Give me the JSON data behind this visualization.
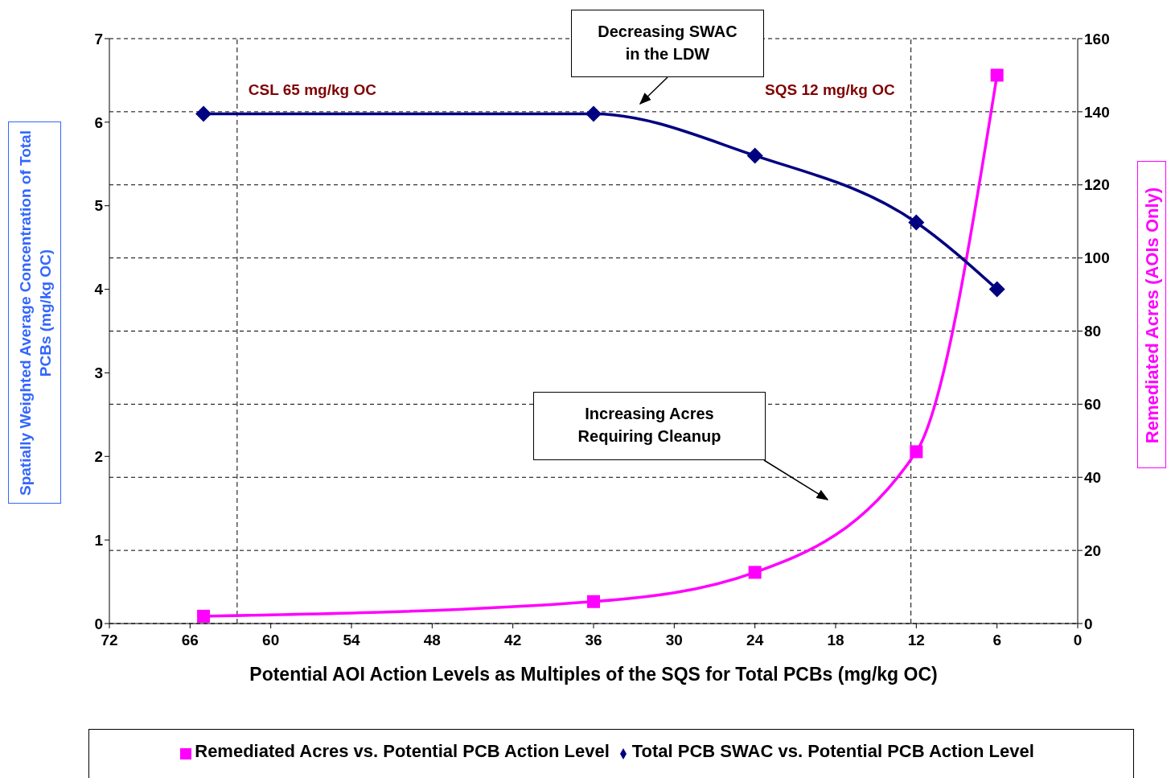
{
  "chart_data": {
    "type": "line",
    "xlabel": "Potential AOI Action Levels as Multiples of the SQS for Total PCBs (mg/kg OC)",
    "ylabel": "Spatially Weighted Average Concentration of Total PCBs (mg/kg OC)",
    "y2label": "Remediated Acres (AOIs Only)",
    "x": [
      65,
      36,
      24,
      12,
      6
    ],
    "series": [
      {
        "name": "Remediated Acres vs. Potential PCB Action Level",
        "color": "#ff00ff",
        "axis": "y2",
        "marker": "square",
        "values": [
          2,
          6,
          14,
          47,
          150
        ]
      },
      {
        "name": "Total PCB SWAC vs. Potential PCB Action Level",
        "color": "#000080",
        "marker": "diamond",
        "values": [
          6.1,
          6.1,
          5.6,
          4.8,
          4.0
        ]
      }
    ],
    "xlim": [
      72,
      0
    ],
    "xticks": [
      72,
      66,
      60,
      54,
      48,
      42,
      36,
      30,
      24,
      18,
      12,
      6,
      0
    ],
    "ylim": [
      0,
      7
    ],
    "yticks": [
      0,
      1,
      2,
      3,
      4,
      5,
      6,
      7
    ],
    "y2lim": [
      0,
      160
    ],
    "y2ticks": [
      0,
      20,
      40,
      60,
      80,
      100,
      120,
      140,
      160
    ],
    "ref_lines": [
      {
        "axis": "x",
        "value": 62.5,
        "label": "CSL 65 mg/kg OC",
        "line_style": "dashed"
      },
      {
        "axis": "x",
        "value": 12.4,
        "label": "SQS 12 mg/kg OC",
        "line_style": "dashed"
      }
    ],
    "annotations": [
      "Decreasing SWAC in the LDW",
      "Increasing Acres Requiring Cleanup"
    ],
    "grid": "y",
    "legend": "bottom",
    "line_style": "solid"
  }
}
